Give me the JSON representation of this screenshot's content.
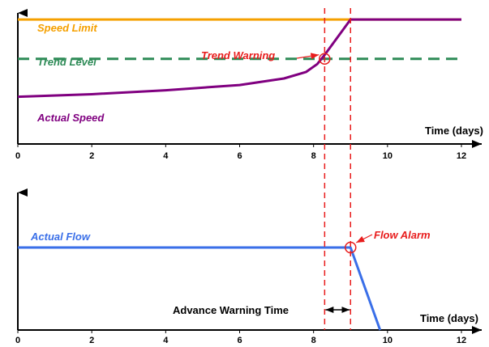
{
  "colors": {
    "speed_limit": "#f5a000",
    "trend_level": "#2e8b57",
    "actual_speed": "#800080",
    "actual_flow": "#3a6fe8",
    "warning": "#e81c1c",
    "axis": "#000000"
  },
  "chart_data": [
    {
      "type": "line",
      "panel": "top",
      "xlabel": "Time (days)",
      "ylabel": "",
      "xlim": [
        0,
        12
      ],
      "ylim": [
        0,
        1
      ],
      "grid": false,
      "x_ticks": [
        "0",
        "2",
        "4",
        "6",
        "8",
        "10",
        "12"
      ],
      "series": [
        {
          "name": "Speed Limit",
          "style": "solid",
          "color": "#f5a000",
          "x": [
            0,
            12
          ],
          "y": [
            0.95,
            0.95
          ]
        },
        {
          "name": "Trend Level",
          "style": "dashed",
          "color": "#2e8b57",
          "x": [
            0,
            12
          ],
          "y": [
            0.65,
            0.65
          ]
        },
        {
          "name": "Actual Speed",
          "style": "solid",
          "color": "#800080",
          "x": [
            0,
            2,
            4,
            6,
            7.2,
            7.8,
            8.1,
            8.3,
            9.0,
            12
          ],
          "y": [
            0.36,
            0.38,
            0.41,
            0.45,
            0.5,
            0.55,
            0.61,
            0.68,
            0.95,
            0.95
          ]
        }
      ],
      "annotations": [
        {
          "text": "Trend Warning",
          "x": 8.3,
          "y": 0.65,
          "color": "#e81c1c"
        }
      ]
    },
    {
      "type": "line",
      "panel": "bottom",
      "xlabel": "Time (days)",
      "ylabel": "",
      "xlim": [
        0,
        12
      ],
      "ylim": [
        0,
        1
      ],
      "grid": false,
      "x_ticks": [
        "0",
        "2",
        "4",
        "6",
        "8",
        "10",
        "12"
      ],
      "series": [
        {
          "name": "Actual Flow",
          "style": "solid",
          "color": "#3a6fe8",
          "x": [
            0,
            9.0,
            9.8
          ],
          "y": [
            0.6,
            0.6,
            0.0
          ]
        }
      ],
      "annotations": [
        {
          "text": "Flow Alarm",
          "x": 9.0,
          "y": 0.6,
          "color": "#e81c1c"
        },
        {
          "text": "Advance Warning Time",
          "x_from": 8.3,
          "x_to": 9.0,
          "color": "#000000"
        }
      ]
    }
  ],
  "reference_lines_x": [
    8.3,
    9.0
  ]
}
